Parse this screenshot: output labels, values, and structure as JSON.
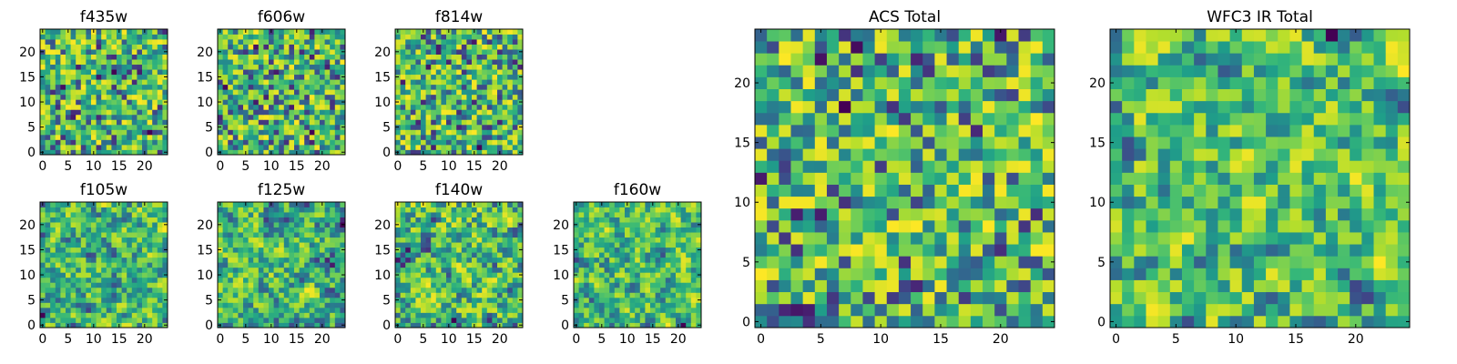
{
  "figure": {
    "colormap": "viridis",
    "colors": [
      "#440154",
      "#3b528b",
      "#21918c",
      "#5ec962",
      "#fde725"
    ]
  },
  "chart_data": [
    {
      "id": "f435w",
      "type": "heatmap",
      "title": "f435w",
      "grid": [
        25,
        25
      ],
      "xticks": [
        0,
        5,
        10,
        15,
        20
      ],
      "yticks": [
        0,
        5,
        10,
        15,
        20
      ],
      "xlim": [
        -0.5,
        24.5
      ],
      "ylim": [
        -0.5,
        24.5
      ],
      "seed": 11,
      "smooth": 0
    },
    {
      "id": "f606w",
      "type": "heatmap",
      "title": "f606w",
      "grid": [
        25,
        25
      ],
      "xticks": [
        0,
        5,
        10,
        15,
        20
      ],
      "yticks": [
        0,
        5,
        10,
        15,
        20
      ],
      "xlim": [
        -0.5,
        24.5
      ],
      "ylim": [
        -0.5,
        24.5
      ],
      "seed": 23,
      "smooth": 0
    },
    {
      "id": "f814w",
      "type": "heatmap",
      "title": "f814w",
      "grid": [
        25,
        25
      ],
      "xticks": [
        0,
        5,
        10,
        15,
        20
      ],
      "yticks": [
        0,
        5,
        10,
        15,
        20
      ],
      "xlim": [
        -0.5,
        24.5
      ],
      "ylim": [
        -0.5,
        24.5
      ],
      "seed": 37,
      "smooth": 0
    },
    {
      "id": "f105w",
      "type": "heatmap",
      "title": "f105w",
      "grid": [
        25,
        25
      ],
      "xticks": [
        0,
        5,
        10,
        15,
        20
      ],
      "yticks": [
        0,
        5,
        10,
        15,
        20
      ],
      "xlim": [
        -0.5,
        24.5
      ],
      "ylim": [
        -0.5,
        24.5
      ],
      "seed": 41,
      "smooth": 1
    },
    {
      "id": "f125w",
      "type": "heatmap",
      "title": "f125w",
      "grid": [
        25,
        25
      ],
      "xticks": [
        0,
        5,
        10,
        15,
        20
      ],
      "yticks": [
        0,
        5,
        10,
        15,
        20
      ],
      "xlim": [
        -0.5,
        24.5
      ],
      "ylim": [
        -0.5,
        24.5
      ],
      "seed": 53,
      "smooth": 1
    },
    {
      "id": "f140w",
      "type": "heatmap",
      "title": "f140w",
      "grid": [
        25,
        25
      ],
      "xticks": [
        0,
        5,
        10,
        15,
        20
      ],
      "yticks": [
        0,
        5,
        10,
        15,
        20
      ],
      "xlim": [
        -0.5,
        24.5
      ],
      "ylim": [
        -0.5,
        24.5
      ],
      "seed": 67,
      "smooth": 1
    },
    {
      "id": "f160w",
      "type": "heatmap",
      "title": "f160w",
      "grid": [
        25,
        25
      ],
      "xticks": [
        0,
        5,
        10,
        15,
        20
      ],
      "yticks": [
        0,
        5,
        10,
        15,
        20
      ],
      "xlim": [
        -0.5,
        24.5
      ],
      "ylim": [
        -0.5,
        24.5
      ],
      "seed": 79,
      "smooth": 1
    },
    {
      "id": "acs",
      "type": "heatmap",
      "title": "ACS Total",
      "grid": [
        25,
        25
      ],
      "xticks": [
        0,
        5,
        10,
        15,
        20
      ],
      "yticks": [
        0,
        5,
        10,
        15,
        20
      ],
      "xlim": [
        -0.5,
        24.5
      ],
      "ylim": [
        -0.5,
        24.5
      ],
      "seed": 97,
      "smooth": 0
    },
    {
      "id": "wfc3",
      "type": "heatmap",
      "title": "WFC3 IR Total",
      "grid": [
        25,
        25
      ],
      "xticks": [
        0,
        5,
        10,
        15,
        20
      ],
      "yticks": [
        0,
        5,
        10,
        15,
        20
      ],
      "xlim": [
        -0.5,
        24.5
      ],
      "ylim": [
        -0.5,
        24.5
      ],
      "seed": 113,
      "smooth": 1
    }
  ]
}
